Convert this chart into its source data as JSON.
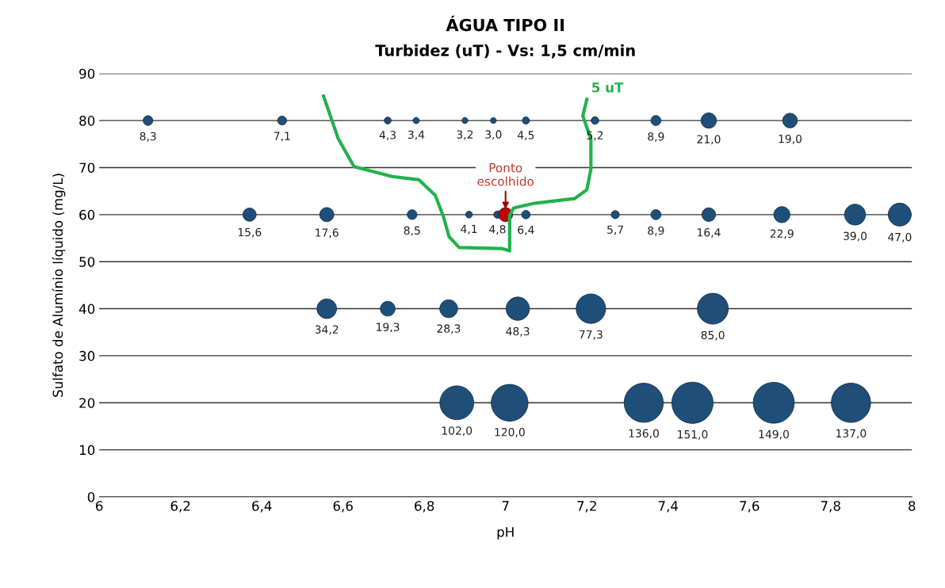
{
  "chart_data": {
    "type": "bubble",
    "title": "ÁGUA TIPO II",
    "subtitle": "Turbidez (uT) - Vs: 1,5 cm/min",
    "xlabel": "pH",
    "ylabel": "Sulfato de Alumínio líquido (mg/L)",
    "xlim": [
      6,
      8
    ],
    "xticks": [
      {
        "value": 6,
        "label": "6"
      },
      {
        "value": 6.2,
        "label": "6,2"
      },
      {
        "value": 6.4,
        "label": "6,4"
      },
      {
        "value": 6.6,
        "label": "6,6"
      },
      {
        "value": 6.8,
        "label": "6,8"
      },
      {
        "value": 7,
        "label": "7"
      },
      {
        "value": 7.2,
        "label": "7,2"
      },
      {
        "value": 7.4,
        "label": "7,4"
      },
      {
        "value": 7.6,
        "label": "7,6"
      },
      {
        "value": 7.8,
        "label": "7,8"
      },
      {
        "value": 8,
        "label": "8"
      }
    ],
    "ylim": [
      0,
      90
    ],
    "yticks": [
      0,
      10,
      20,
      30,
      40,
      50,
      60,
      70,
      80,
      90
    ],
    "grid": "y",
    "series": [
      {
        "type": "bubble",
        "color": "#1f4e79",
        "x": [
          6.12,
          6.45,
          6.71,
          6.78,
          6.9,
          6.97,
          7.05,
          7.22,
          7.37,
          7.5,
          7.7,
          6.37,
          6.56,
          6.77,
          6.91,
          6.98,
          7.05,
          7.27,
          7.37,
          7.5,
          7.68,
          7.86,
          7.97,
          6.56,
          6.71,
          6.86,
          7.03,
          7.21,
          7.51,
          6.88,
          7.01,
          7.34,
          7.46,
          7.66,
          7.85
        ],
        "values": [
          80,
          80,
          80,
          80,
          80,
          80,
          80,
          80,
          80,
          80,
          80,
          60,
          60,
          60,
          60,
          60,
          60,
          60,
          60,
          60,
          60,
          60,
          60,
          40,
          40,
          40,
          40,
          40,
          40,
          20,
          20,
          20,
          20,
          20,
          20
        ],
        "sizes": [
          0.055,
          0.047,
          0.028,
          0.023,
          0.021,
          0.02,
          0.03,
          0.034,
          0.059,
          0.139,
          0.126,
          0.103,
          0.117,
          0.056,
          0.027,
          0.032,
          0.042,
          0.038,
          0.059,
          0.109,
          0.152,
          0.258,
          0.311,
          0.226,
          0.128,
          0.187,
          0.32,
          0.512,
          0.563,
          0.675,
          0.795,
          0.901,
          1,
          0.987,
          0.907
        ]
      },
      {
        "type": "bubble",
        "color": "#c00000",
        "x": [
          7.0
        ],
        "values": [
          60
        ],
        "sizes": [
          0.117
        ]
      },
      {
        "type": "line",
        "name": "5 uT",
        "color": "#22b14c",
        "x": [
          6.552,
          6.588,
          6.627,
          6.721,
          6.787,
          6.827,
          6.847,
          6.861,
          6.886,
          6.99,
          7.01,
          7.01,
          7.02,
          7.07,
          7.17,
          7.2,
          7.21,
          7.21,
          7.19,
          7.2
        ],
        "values": [
          85.2,
          76.2,
          70.2,
          68.1,
          67.4,
          64.1,
          59.6,
          55.3,
          53.0,
          52.8,
          52.3,
          59.8,
          61.4,
          62.4,
          63.4,
          65.3,
          69.7,
          76.1,
          81.0,
          84.5
        ]
      }
    ],
    "annotations": [
      {
        "text": "8,3",
        "x": 6.12,
        "y": 80
      },
      {
        "text": "7,1",
        "x": 6.45,
        "y": 80
      },
      {
        "text": "4,3",
        "x": 6.71,
        "y": 80
      },
      {
        "text": "3,4",
        "x": 6.78,
        "y": 80
      },
      {
        "text": "3,2",
        "x": 6.9,
        "y": 80
      },
      {
        "text": "3,0",
        "x": 6.97,
        "y": 80
      },
      {
        "text": "4,5",
        "x": 7.05,
        "y": 80
      },
      {
        "text": "5,2",
        "x": 7.22,
        "y": 80
      },
      {
        "text": "8,9",
        "x": 7.37,
        "y": 80
      },
      {
        "text": "21,0",
        "x": 7.5,
        "y": 80
      },
      {
        "text": "19,0",
        "x": 7.7,
        "y": 80
      },
      {
        "text": "15,6",
        "x": 6.37,
        "y": 60
      },
      {
        "text": "17,6",
        "x": 6.56,
        "y": 60
      },
      {
        "text": "8,5",
        "x": 6.77,
        "y": 60
      },
      {
        "text": "4,1",
        "x": 6.91,
        "y": 60
      },
      {
        "text": "4,8",
        "x": 6.98,
        "y": 60
      },
      {
        "text": "6,4",
        "x": 7.05,
        "y": 60
      },
      {
        "text": "5,7",
        "x": 7.27,
        "y": 60
      },
      {
        "text": "8,9",
        "x": 7.37,
        "y": 60
      },
      {
        "text": "16,4",
        "x": 7.5,
        "y": 60
      },
      {
        "text": "22,9",
        "x": 7.68,
        "y": 60
      },
      {
        "text": "39,0",
        "x": 7.86,
        "y": 60
      },
      {
        "text": "47,0",
        "x": 7.97,
        "y": 60
      },
      {
        "text": "34,2",
        "x": 6.56,
        "y": 40
      },
      {
        "text": "19,3",
        "x": 6.71,
        "y": 40
      },
      {
        "text": "28,3",
        "x": 6.86,
        "y": 40
      },
      {
        "text": "48,3",
        "x": 7.03,
        "y": 40
      },
      {
        "text": "77,3",
        "x": 7.21,
        "y": 40
      },
      {
        "text": "85,0",
        "x": 7.51,
        "y": 40
      },
      {
        "text": "102,0",
        "x": 6.88,
        "y": 20
      },
      {
        "text": "120,0",
        "x": 7.01,
        "y": 20
      },
      {
        "text": "136,0",
        "x": 7.34,
        "y": 20
      },
      {
        "text": "151,0",
        "x": 7.46,
        "y": 20
      },
      {
        "text": "149,0",
        "x": 7.66,
        "y": 20
      },
      {
        "text": "137,0",
        "x": 7.85,
        "y": 20
      },
      {
        "text": "Ponto\nescolhido",
        "x": 7.0,
        "y": 60
      }
    ]
  }
}
